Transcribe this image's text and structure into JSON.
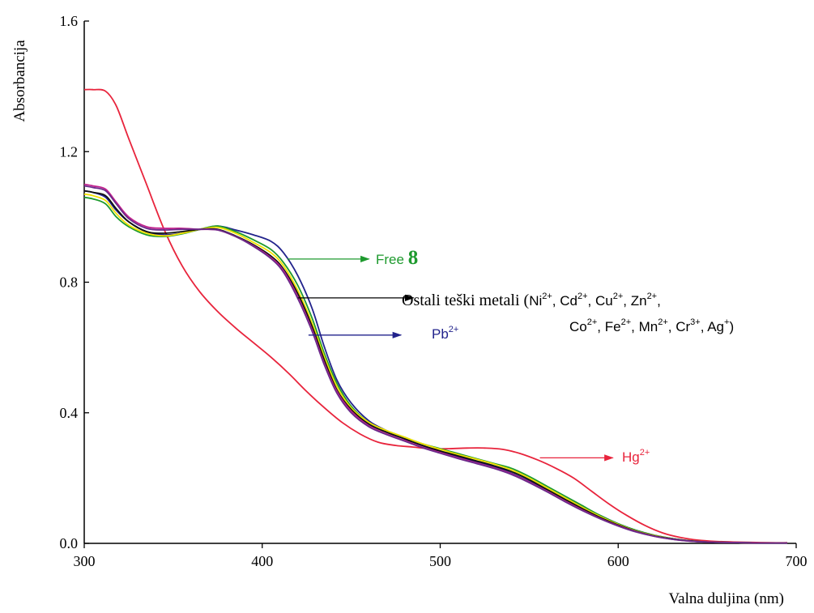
{
  "chart_data": {
    "type": "line",
    "xlabel": "Valna duljina (nm)",
    "ylabel": "Absorbancija",
    "xlim": [
      300,
      700
    ],
    "ylim": [
      0,
      1.6
    ],
    "x_ticks": [
      300,
      400,
      500,
      600,
      700
    ],
    "x_tick_labels": [
      "300",
      "400",
      "500",
      "600",
      "700"
    ],
    "y_ticks": [
      0,
      0.4,
      0.8,
      1.2,
      1.6
    ],
    "y_tick_labels": [
      "0.0",
      "0.4",
      "0.8",
      "1.2",
      "1.6"
    ],
    "grid": false,
    "series": [
      {
        "color": "#e8243c",
        "x": [
          300,
          305,
          312,
          318,
          325,
          335,
          345,
          355,
          365,
          375,
          385,
          395,
          405,
          415,
          425,
          435,
          445,
          455,
          465,
          475,
          485,
          495,
          505,
          515,
          525,
          535,
          545,
          555,
          565,
          575,
          585,
          595,
          605,
          615,
          625,
          635,
          645,
          655,
          665,
          675,
          685,
          695
        ],
        "y": [
          1.39,
          1.39,
          1.385,
          1.34,
          1.24,
          1.1,
          0.96,
          0.85,
          0.77,
          0.71,
          0.66,
          0.615,
          0.57,
          0.52,
          0.465,
          0.415,
          0.37,
          0.335,
          0.31,
          0.3,
          0.295,
          0.29,
          0.29,
          0.292,
          0.292,
          0.288,
          0.275,
          0.255,
          0.23,
          0.2,
          0.16,
          0.12,
          0.085,
          0.055,
          0.032,
          0.018,
          0.01,
          0.006,
          0.004,
          0.003,
          0.002,
          0.002
        ]
      },
      {
        "color": "#22238c",
        "x": [
          300,
          305,
          312,
          318,
          325,
          335,
          345,
          355,
          365,
          375,
          385,
          395,
          405,
          412,
          420,
          428,
          435,
          442,
          450,
          460,
          470,
          480,
          490,
          500,
          510,
          520,
          530,
          540,
          550,
          560,
          570,
          580,
          590,
          600,
          610,
          620,
          630,
          640,
          650,
          660,
          670,
          680,
          695
        ],
        "y": [
          1.08,
          1.075,
          1.06,
          1.02,
          0.985,
          0.955,
          0.945,
          0.95,
          0.962,
          0.972,
          0.96,
          0.945,
          0.925,
          0.89,
          0.82,
          0.72,
          0.6,
          0.5,
          0.43,
          0.375,
          0.345,
          0.32,
          0.3,
          0.28,
          0.265,
          0.25,
          0.235,
          0.215,
          0.19,
          0.165,
          0.14,
          0.11,
          0.085,
          0.06,
          0.04,
          0.025,
          0.015,
          0.008,
          0.004,
          0.003,
          0.002,
          0.001,
          0.001
        ]
      },
      {
        "color": "#1e9a2e",
        "x": [
          300,
          305,
          312,
          318,
          325,
          335,
          345,
          355,
          365,
          375,
          385,
          395,
          405,
          412,
          420,
          428,
          435,
          442,
          450,
          460,
          470,
          480,
          490,
          500,
          510,
          520,
          530,
          540,
          550,
          560,
          570,
          580,
          590,
          600,
          610,
          620,
          630,
          640,
          650,
          660,
          670,
          680,
          695
        ],
        "y": [
          1.06,
          1.055,
          1.04,
          1.0,
          0.97,
          0.945,
          0.94,
          0.948,
          0.962,
          0.972,
          0.955,
          0.93,
          0.9,
          0.86,
          0.79,
          0.69,
          0.58,
          0.49,
          0.42,
          0.37,
          0.345,
          0.325,
          0.305,
          0.29,
          0.275,
          0.26,
          0.245,
          0.23,
          0.205,
          0.175,
          0.145,
          0.115,
          0.085,
          0.06,
          0.04,
          0.025,
          0.015,
          0.008,
          0.004,
          0.003,
          0.002,
          0.001,
          0.001
        ]
      },
      {
        "color": "#f2e200",
        "x": [
          300,
          305,
          312,
          318,
          325,
          335,
          345,
          355,
          365,
          375,
          385,
          395,
          405,
          412,
          420,
          428,
          435,
          442,
          450,
          460,
          470,
          480,
          490,
          500,
          510,
          520,
          530,
          540,
          550,
          560,
          570,
          580,
          590,
          600,
          610,
          620,
          630,
          640,
          650,
          660,
          670,
          680,
          695
        ],
        "y": [
          1.07,
          1.065,
          1.05,
          1.01,
          0.975,
          0.95,
          0.942,
          0.95,
          0.962,
          0.968,
          0.95,
          0.922,
          0.89,
          0.85,
          0.775,
          0.675,
          0.57,
          0.48,
          0.415,
          0.37,
          0.345,
          0.325,
          0.305,
          0.288,
          0.272,
          0.258,
          0.243,
          0.225,
          0.2,
          0.17,
          0.14,
          0.11,
          0.082,
          0.058,
          0.038,
          0.024,
          0.014,
          0.008,
          0.004,
          0.003,
          0.002,
          0.001,
          0.001
        ]
      },
      {
        "color": "#111111",
        "x": [
          300,
          305,
          312,
          318,
          325,
          335,
          345,
          355,
          365,
          375,
          385,
          395,
          405,
          412,
          420,
          428,
          435,
          442,
          450,
          460,
          470,
          480,
          490,
          500,
          510,
          520,
          530,
          540,
          550,
          560,
          570,
          580,
          590,
          600,
          610,
          620,
          630,
          640,
          650,
          660,
          670,
          680,
          695
        ],
        "y": [
          1.08,
          1.075,
          1.065,
          1.025,
          0.985,
          0.955,
          0.95,
          0.955,
          0.962,
          0.962,
          0.942,
          0.915,
          0.88,
          0.84,
          0.765,
          0.665,
          0.56,
          0.47,
          0.41,
          0.365,
          0.34,
          0.32,
          0.3,
          0.283,
          0.268,
          0.253,
          0.238,
          0.22,
          0.195,
          0.165,
          0.135,
          0.106,
          0.079,
          0.056,
          0.037,
          0.023,
          0.014,
          0.008,
          0.004,
          0.003,
          0.002,
          0.001,
          0.001
        ]
      },
      {
        "color": "#c0208c",
        "x": [
          300,
          305,
          312,
          318,
          325,
          335,
          345,
          355,
          365,
          375,
          385,
          395,
          405,
          412,
          420,
          428,
          435,
          442,
          450,
          460,
          470,
          480,
          490,
          500,
          510,
          520,
          530,
          540,
          550,
          560,
          570,
          580,
          590,
          600,
          610,
          620,
          630,
          640,
          650,
          660,
          670,
          680,
          695
        ],
        "y": [
          1.1,
          1.095,
          1.085,
          1.045,
          1.0,
          0.97,
          0.965,
          0.965,
          0.962,
          0.96,
          0.94,
          0.912,
          0.875,
          0.835,
          0.755,
          0.655,
          0.55,
          0.465,
          0.405,
          0.36,
          0.335,
          0.315,
          0.295,
          0.278,
          0.262,
          0.247,
          0.232,
          0.213,
          0.188,
          0.16,
          0.13,
          0.102,
          0.076,
          0.054,
          0.036,
          0.022,
          0.013,
          0.007,
          0.004,
          0.003,
          0.002,
          0.001,
          0.001
        ]
      },
      {
        "color": "#6a2a8a",
        "x": [
          300,
          305,
          312,
          318,
          325,
          335,
          345,
          355,
          365,
          375,
          385,
          395,
          405,
          412,
          420,
          428,
          435,
          442,
          450,
          460,
          470,
          480,
          490,
          500,
          510,
          520,
          530,
          540,
          550,
          560,
          570,
          580,
          590,
          600,
          610,
          620,
          630,
          640,
          650,
          660,
          670,
          680,
          695
        ],
        "y": [
          1.095,
          1.09,
          1.08,
          1.04,
          0.995,
          0.965,
          0.96,
          0.962,
          0.962,
          0.96,
          0.94,
          0.91,
          0.872,
          0.83,
          0.75,
          0.65,
          0.545,
          0.46,
          0.4,
          0.357,
          0.333,
          0.313,
          0.293,
          0.276,
          0.26,
          0.245,
          0.23,
          0.211,
          0.186,
          0.158,
          0.128,
          0.1,
          0.075,
          0.053,
          0.035,
          0.022,
          0.013,
          0.007,
          0.004,
          0.003,
          0.002,
          0.001,
          0.001
        ]
      }
    ],
    "annotations": [
      {
        "id": "free",
        "color": "#1e9a2e",
        "arrow_from": [
          414,
          0.871
        ],
        "arrow_to": [
          460,
          0.871
        ],
        "label": "Free ",
        "label_bold": "8"
      },
      {
        "id": "ostali",
        "color": "#000000",
        "arrow_from": [
          420,
          0.752
        ],
        "arrow_to": [
          485,
          0.752
        ],
        "label": "Ostali teški metali (",
        "ions_line1": [
          {
            "base": "Ni",
            "sup": "2+",
            "sep": ", "
          },
          {
            "base": "Cd",
            "sup": "2+",
            "sep": ", "
          },
          {
            "base": "Cu",
            "sup": "2+",
            "sep": ", "
          },
          {
            "base": "Zn",
            "sup": "2+",
            "sep": ","
          }
        ],
        "ions_line2": [
          {
            "base": "Co",
            "sup": "2+",
            "sep": ", "
          },
          {
            "base": "Fe",
            "sup": "2+",
            "sep": ", "
          },
          {
            "base": "Mn",
            "sup": "2+",
            "sep": ", "
          },
          {
            "base": "Cr",
            "sup": "3+",
            "sep": ", "
          },
          {
            "base": "Ag",
            "sup": "+",
            "sep": ")"
          }
        ]
      },
      {
        "id": "pb",
        "color": "#22238c",
        "arrow_from": [
          426,
          0.638
        ],
        "arrow_to": [
          478,
          0.638
        ],
        "base": "Pb",
        "sup": "2+"
      },
      {
        "id": "hg",
        "color": "#e8243c",
        "arrow_from": [
          556,
          0.262
        ],
        "arrow_to": [
          597,
          0.262
        ],
        "base": "Hg",
        "sup": "2+"
      }
    ]
  }
}
